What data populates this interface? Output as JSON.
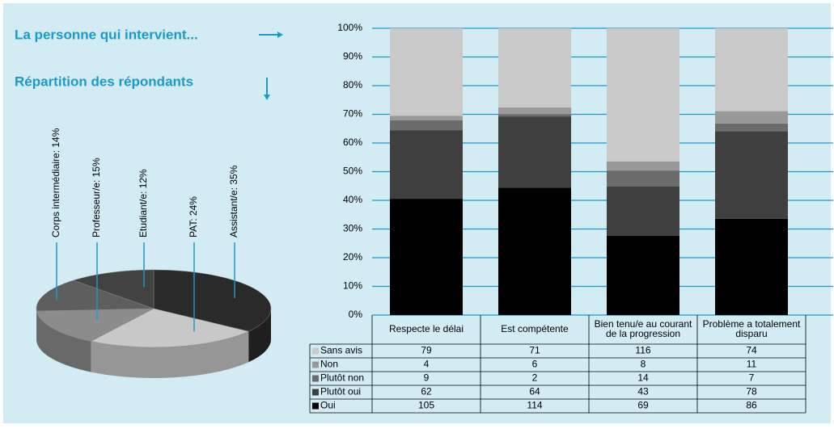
{
  "chart_data": [
    {
      "type": "stacked_bar_table",
      "title": "La personne qui intervient...",
      "categories": [
        "Respecte le délai",
        "Est compétente",
        "Bien tenu/e au courant de la progression",
        "Problème a totalement disparu"
      ],
      "series": [
        {
          "name": "Oui",
          "color": "#000000",
          "values": [
            105,
            114,
            69,
            86
          ]
        },
        {
          "name": "Plutôt oui",
          "color": "#3f3f3f",
          "values": [
            62,
            64,
            43,
            78
          ]
        },
        {
          "name": "Plutôt non",
          "color": "#6b6b6b",
          "values": [
            9,
            2,
            14,
            7
          ]
        },
        {
          "name": "Non",
          "color": "#999999",
          "values": [
            4,
            6,
            8,
            11
          ]
        },
        {
          "name": "Sans avis",
          "color": "#c9c9c9",
          "values": [
            79,
            71,
            116,
            74
          ]
        }
      ],
      "ylim": [
        0,
        100
      ],
      "yticks": [
        {
          "value": 0,
          "label": "0%"
        },
        {
          "value": 10,
          "label": "10%"
        },
        {
          "value": 20,
          "label": "20%"
        },
        {
          "value": 30,
          "label": "30%"
        },
        {
          "value": 40,
          "label": "40%"
        },
        {
          "value": 50,
          "label": "50%"
        },
        {
          "value": 60,
          "label": "60%"
        },
        {
          "value": 70,
          "label": "70%"
        },
        {
          "value": 80,
          "label": "80%"
        },
        {
          "value": 90,
          "label": "90%"
        },
        {
          "value": 100,
          "label": "100%"
        }
      ],
      "grid": true,
      "grid_color": "#1a9ac9"
    },
    {
      "type": "pie3d",
      "title": "Répartition des répondants",
      "values": [
        35,
        24,
        15,
        14,
        12
      ],
      "value_labels": [
        "Assistant/e: 35%",
        "PAT: 24%",
        "Professeur/e: 15%",
        "Corps intermédiaire: 14%",
        "Etudiant/e: 12%"
      ],
      "colors": [
        "#2a2a2a",
        "#c8c8c8",
        "#8c8c8c",
        "#5e5e5e",
        "#424242"
      ]
    }
  ]
}
